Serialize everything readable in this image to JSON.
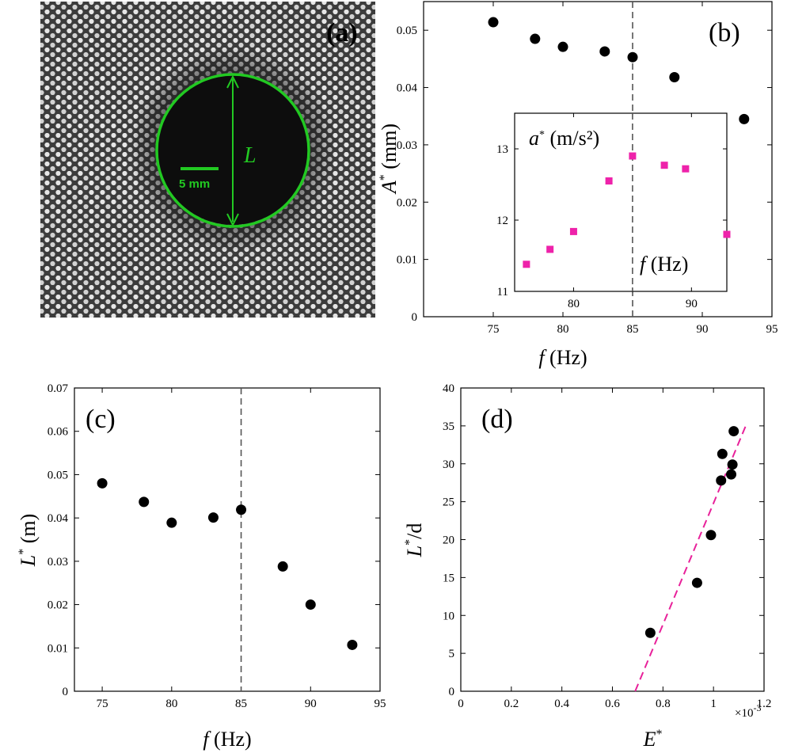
{
  "panels": {
    "a": {
      "label": "(a)",
      "length_label": "L",
      "scale_label": "5 mm",
      "colors": {
        "circle": "#22c922"
      }
    },
    "b": {
      "label": "(b)"
    },
    "c": {
      "label": "(c)"
    },
    "d": {
      "label": "(d)"
    }
  },
  "chart_data": [
    {
      "id": "b",
      "type": "scatter",
      "xlabel_var": "f",
      "xlabel_unit": "(Hz)",
      "ylabel_var": "A",
      "ylabel_unit": "(mm)",
      "xlim": [
        70,
        95
      ],
      "ylim": [
        0,
        0.055
      ],
      "xticks": [
        75,
        80,
        85,
        90,
        95
      ],
      "yticks": [
        0,
        0.01,
        0.02,
        0.03,
        0.04,
        0.05
      ],
      "ytick_labels": [
        "0",
        "0.01",
        "0.02",
        "0.03",
        "0.04",
        "0.05"
      ],
      "vline": 85,
      "marker_color": "#000000",
      "x": [
        75,
        78,
        80,
        83,
        85,
        88,
        93
      ],
      "y": [
        0.0514,
        0.0485,
        0.0471,
        0.0463,
        0.0453,
        0.0418,
        0.0345
      ]
    },
    {
      "id": "b-inset",
      "type": "scatter",
      "xlabel_var": "f",
      "xlabel_unit": "(Hz)",
      "ylabel_var": "a",
      "ylabel_unit": "(m/s²)",
      "xlim": [
        75,
        93
      ],
      "ylim": [
        11,
        13.5
      ],
      "xticks": [
        80,
        85,
        90
      ],
      "xtick_labels": [
        "80",
        "",
        "90"
      ],
      "yticks": [
        11,
        12,
        13
      ],
      "vline": 85,
      "marker_color": "#ee22aa",
      "x": [
        76,
        78,
        80,
        83,
        85,
        87.7,
        89.5,
        93
      ],
      "y": [
        11.38,
        11.59,
        11.84,
        12.55,
        12.9,
        12.77,
        12.72,
        11.8
      ]
    },
    {
      "id": "c",
      "type": "scatter",
      "xlabel_var": "f",
      "xlabel_unit": "(Hz)",
      "ylabel_var": "L",
      "ylabel_unit": "(m)",
      "xlim": [
        73,
        95
      ],
      "ylim": [
        0,
        0.07
      ],
      "xticks": [
        75,
        80,
        85,
        90,
        95
      ],
      "yticks": [
        0,
        0.01,
        0.02,
        0.03,
        0.04,
        0.05,
        0.06,
        0.07
      ],
      "ytick_labels": [
        "0",
        "0.01",
        "0.02",
        "0.03",
        "0.04",
        "0.05",
        "0.06",
        "0.07"
      ],
      "vline": 85,
      "marker_color": "#000000",
      "x": [
        75,
        78,
        80,
        83,
        85,
        88,
        90,
        93
      ],
      "y": [
        0.048,
        0.0437,
        0.0389,
        0.0401,
        0.0419,
        0.0288,
        0.02,
        0.0107
      ]
    },
    {
      "id": "d",
      "type": "scatter",
      "xlabel_var": "E",
      "ylabel_var": "L",
      "ylabel_tail": "/d",
      "x_exponent": "×10",
      "x_exponent_power": "-3",
      "xlim": [
        0,
        1.2
      ],
      "ylim": [
        0,
        40
      ],
      "xticks": [
        0,
        0.2,
        0.4,
        0.6,
        0.8,
        1,
        1.2
      ],
      "xtick_labels": [
        "0",
        "0.2",
        "0.4",
        "0.6",
        "0.8",
        "1",
        "1.2"
      ],
      "yticks": [
        0,
        5,
        10,
        15,
        20,
        25,
        30,
        35,
        40
      ],
      "marker_color": "#000000",
      "fit_color": "#e8219a",
      "fit_line": {
        "x": [
          0.69,
          1.13
        ],
        "y": [
          0,
          35.2
        ]
      },
      "x": [
        0.75,
        0.935,
        0.99,
        1.03,
        1.035,
        1.07,
        1.075,
        1.08
      ],
      "y": [
        7.7,
        14.3,
        20.6,
        27.8,
        31.3,
        28.6,
        29.9,
        34.3
      ]
    }
  ]
}
